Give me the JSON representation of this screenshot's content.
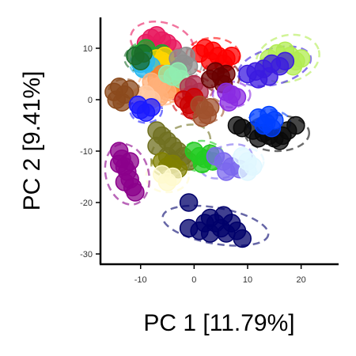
{
  "chart_data": {
    "type": "scatter",
    "title": "",
    "xlabel": "PC 1 [11.79%]",
    "ylabel": "PC 2 [9.41%]",
    "xlim": [
      -17.5,
      27
    ],
    "ylim": [
      -32,
      16
    ],
    "x_ticks": [
      -10,
      0,
      10,
      20
    ],
    "y_ticks": [
      -30,
      -20,
      -10,
      0,
      10
    ],
    "x_tick_labels": [
      "-10",
      "0",
      "10",
      "20"
    ],
    "y_tick_labels": [
      "-30",
      "-20",
      "-10",
      "0",
      "10"
    ],
    "grid": false,
    "legend": "none",
    "point_alpha": 0.75,
    "groups": [
      {
        "color": "#b2ec52",
        "ellipse": [
          17.5,
          8,
          6,
          4.5,
          15
        ],
        "points": [
          [
            14,
            8
          ],
          [
            15.5,
            9
          ],
          [
            17,
            9.5
          ],
          [
            18,
            8.5
          ],
          [
            19,
            7.5
          ],
          [
            20,
            8
          ],
          [
            16,
            7
          ],
          [
            18.5,
            6.5
          ],
          [
            13.5,
            6.5
          ]
        ]
      },
      {
        "color": "#3b1be0",
        "ellipse": [
          15,
          6.5,
          7,
          3.5,
          15
        ],
        "points": [
          [
            10,
            5
          ],
          [
            11.5,
            5.5
          ],
          [
            13,
            6
          ],
          [
            14.5,
            7
          ],
          [
            16,
            6.5
          ],
          [
            12,
            4
          ],
          [
            14,
            4.5
          ],
          [
            17,
            7.5
          ]
        ]
      },
      {
        "color": "#0a0a0a",
        "ellipse": [
          15.5,
          -6.5,
          6,
          3.5,
          0
        ],
        "points": [
          [
            8,
            -5
          ],
          [
            9,
            -5.5
          ],
          [
            11,
            -6
          ],
          [
            13,
            -6.5
          ],
          [
            14,
            -7
          ],
          [
            15,
            -7.5
          ],
          [
            16.5,
            -7
          ],
          [
            17.5,
            -6
          ],
          [
            19,
            -5
          ],
          [
            16,
            -8
          ],
          [
            12,
            -7.5
          ]
        ]
      },
      {
        "color": "#0040ff",
        "ellipse": [
          14,
          -4.5,
          4,
          2.5,
          0
        ],
        "points": [
          [
            12,
            -3.5
          ],
          [
            13.5,
            -4.5
          ],
          [
            15,
            -4
          ],
          [
            14.5,
            -5.5
          ],
          [
            13,
            -5
          ],
          [
            14,
            -3
          ]
        ]
      },
      {
        "color": "#e8195f",
        "ellipse": [
          -6,
          11,
          6,
          4,
          -15
        ],
        "points": [
          [
            -8,
            12
          ],
          [
            -7,
            12.5
          ],
          [
            -6,
            11.5
          ],
          [
            -5,
            11
          ],
          [
            -4,
            10
          ],
          [
            -7.5,
            10
          ],
          [
            -9,
            11
          ]
        ]
      },
      {
        "color": "#ff0000",
        "ellipse": [
          3.5,
          8.5,
          5,
          3.5,
          0
        ],
        "points": [
          [
            1,
            9
          ],
          [
            2,
            10
          ],
          [
            3.5,
            9.5
          ],
          [
            4.5,
            8.5
          ],
          [
            6,
            8
          ],
          [
            7,
            8.5
          ],
          [
            3,
            7.5
          ],
          [
            5.5,
            7
          ]
        ]
      },
      {
        "color": "#1aaa2a",
        "ellipse": [
          -8,
          8.5,
          4.5,
          3,
          0
        ],
        "points": [
          [
            -10,
            9
          ],
          [
            -9,
            10
          ],
          [
            -8,
            8.5
          ],
          [
            -7,
            8
          ],
          [
            -6,
            9
          ],
          [
            -9,
            7.5
          ]
        ]
      },
      {
        "color": "#ffd400",
        "ellipse": [
          -6,
          7.5,
          3.5,
          2.5,
          0
        ],
        "points": [
          [
            -7,
            8
          ],
          [
            -6,
            7.5
          ],
          [
            -5,
            7
          ],
          [
            -6.5,
            6.5
          ],
          [
            -5.5,
            8.5
          ]
        ]
      },
      {
        "color": "#28b8f0",
        "ellipse": [
          -9,
          7,
          3,
          2.5,
          0
        ],
        "points": [
          [
            -10,
            7
          ],
          [
            -9,
            7.5
          ],
          [
            -8,
            6.5
          ],
          [
            -9.5,
            6
          ]
        ]
      },
      {
        "color": "#1a6b2a",
        "ellipse": [
          -10,
          8,
          3,
          2.5,
          0
        ],
        "points": [
          [
            -11,
            8.5
          ],
          [
            -10,
            7.5
          ],
          [
            -9.5,
            9
          ]
        ]
      },
      {
        "color": "#ff7f27",
        "ellipse": [
          -5,
          3,
          4.5,
          3.5,
          0
        ],
        "points": [
          [
            -7,
            4
          ],
          [
            -6,
            5
          ],
          [
            -5,
            3.5
          ],
          [
            -4,
            4
          ],
          [
            -3,
            3
          ],
          [
            -6,
            2.5
          ],
          [
            -4.5,
            2
          ]
        ]
      },
      {
        "color": "#ffb07a",
        "ellipse": [
          -6,
          2.5,
          4.5,
          3.5,
          0
        ],
        "points": [
          [
            -8,
            3.5
          ],
          [
            -7,
            2.5
          ],
          [
            -6,
            3
          ],
          [
            -5,
            1.5
          ],
          [
            -7.5,
            1
          ],
          [
            -6.5,
            0.5
          ]
        ]
      },
      {
        "color": "#ffc8a0",
        "ellipse": [
          -9,
          0,
          3.5,
          2.5,
          0
        ],
        "points": [
          [
            -10,
            0.5
          ],
          [
            -9,
            1
          ],
          [
            -8,
            0
          ],
          [
            -9.5,
            -1
          ]
        ]
      },
      {
        "color": "#8b4a1c",
        "ellipse": [
          -13,
          1.5,
          3,
          2.5,
          0
        ],
        "points": [
          [
            -15,
            1.5
          ],
          [
            -14,
            2.5
          ],
          [
            -13,
            1
          ],
          [
            -12,
            2
          ],
          [
            -14.5,
            0
          ],
          [
            -13.5,
            -0.5
          ]
        ]
      },
      {
        "color": "#8f8f8f",
        "ellipse": [
          -2,
          7,
          3.5,
          3,
          0
        ],
        "points": [
          [
            -3,
            8
          ],
          [
            -2,
            7
          ],
          [
            -1,
            6.5
          ],
          [
            -3,
            6
          ],
          [
            -1.5,
            8.5
          ]
        ]
      },
      {
        "color": "#90eeb0",
        "ellipse": [
          -3.5,
          4.5,
          3,
          2.5,
          0
        ],
        "points": [
          [
            -5,
            5
          ],
          [
            -4,
            4.5
          ],
          [
            -3,
            5.5
          ],
          [
            -2.5,
            4
          ]
        ]
      },
      {
        "color": "#b03050",
        "ellipse": [
          0,
          2,
          3.5,
          2.5,
          0
        ],
        "points": [
          [
            -1,
            2.5
          ],
          [
            0,
            3
          ],
          [
            1,
            1.5
          ],
          [
            -0.5,
            1
          ]
        ]
      },
      {
        "color": "#6b0000",
        "ellipse": [
          5,
          4.5,
          3.5,
          3,
          0
        ],
        "points": [
          [
            4,
            5.5
          ],
          [
            5,
            4.5
          ],
          [
            6,
            5
          ],
          [
            3,
            4
          ],
          [
            5.5,
            3
          ]
        ]
      },
      {
        "color": "#cc0000",
        "ellipse": [
          -1,
          -0.5,
          3,
          2.5,
          0
        ],
        "points": [
          [
            -2,
            0
          ],
          [
            -1,
            -1
          ],
          [
            0,
            0.5
          ],
          [
            -0.5,
            -2
          ]
        ]
      },
      {
        "color": "#a0522d",
        "ellipse": [
          2,
          -2,
          3.5,
          2.5,
          0
        ],
        "points": [
          [
            1,
            -1
          ],
          [
            2,
            -2
          ],
          [
            3,
            -1.5
          ],
          [
            2.5,
            -3
          ],
          [
            1.5,
            -3.5
          ]
        ]
      },
      {
        "color": "#1a1aff",
        "ellipse": [
          -9,
          -2,
          3,
          2.5,
          0
        ],
        "points": [
          [
            -10,
            -2
          ],
          [
            -9,
            -2.5
          ],
          [
            -8,
            -1.5
          ],
          [
            -10.5,
            -1
          ]
        ]
      },
      {
        "color": "#8a2be2",
        "ellipse": [
          7,
          1,
          3.5,
          2.5,
          0
        ],
        "points": [
          [
            6,
            1.5
          ],
          [
            7,
            1
          ],
          [
            8,
            0.5
          ],
          [
            6.5,
            -0.5
          ]
        ]
      },
      {
        "color": "#707020",
        "ellipse": [
          -2.5,
          -9.5,
          6,
          4,
          30
        ],
        "points": [
          [
            -7,
            -6
          ],
          [
            -6,
            -7
          ],
          [
            -5,
            -8
          ],
          [
            -4,
            -9
          ],
          [
            -3,
            -10
          ],
          [
            -2,
            -11
          ],
          [
            -1,
            -12
          ],
          [
            -5,
            -11
          ],
          [
            -7,
            -9
          ],
          [
            -4,
            -12
          ]
        ]
      },
      {
        "color": "#808000",
        "ellipse": [
          -4.5,
          -12.5,
          3.5,
          2.5,
          0
        ],
        "points": [
          [
            -6,
            -12
          ],
          [
            -5,
            -13
          ],
          [
            -4,
            -12.5
          ],
          [
            -3,
            -13.5
          ]
        ]
      },
      {
        "color": "#fffacd",
        "ellipse": [
          -5,
          -15,
          4,
          3,
          0
        ],
        "points": [
          [
            -6,
            -14.5
          ],
          [
            -5,
            -16
          ],
          [
            -4,
            -15
          ]
        ]
      },
      {
        "color": "#22cc22",
        "ellipse": [
          1.5,
          -11,
          4,
          3,
          0
        ],
        "points": [
          [
            0,
            -10
          ],
          [
            1,
            -11
          ],
          [
            2,
            -11.5
          ],
          [
            3,
            -10.5
          ],
          [
            1.5,
            -12.5
          ],
          [
            3.5,
            -12
          ]
        ]
      },
      {
        "color": "#7b68ee",
        "ellipse": [
          6,
          -12,
          5,
          3,
          20
        ],
        "points": [
          [
            4,
            -11
          ],
          [
            5.5,
            -12
          ],
          [
            7,
            -13
          ],
          [
            8.5,
            -13.5
          ],
          [
            6,
            -14
          ]
        ]
      },
      {
        "color": "#e0f7ff",
        "ellipse": [
          10,
          -12,
          3,
          2.5,
          0
        ],
        "points": [
          [
            9,
            -11
          ],
          [
            10,
            -12
          ],
          [
            11,
            -13
          ],
          [
            10,
            -14
          ]
        ]
      },
      {
        "color": "#8b008b",
        "ellipse": [
          -12.5,
          -14.5,
          4,
          6,
          15
        ],
        "points": [
          [
            -14,
            -10
          ],
          [
            -13.5,
            -11.5
          ],
          [
            -13,
            -13
          ],
          [
            -12.5,
            -14
          ],
          [
            -12,
            -15.5
          ],
          [
            -11.5,
            -17
          ],
          [
            -11,
            -18
          ],
          [
            -13,
            -16
          ],
          [
            -14,
            -12.5
          ],
          [
            -12,
            -12
          ]
        ]
      },
      {
        "color": "#00006b",
        "ellipse": [
          4,
          -24.5,
          10,
          3.5,
          -10
        ],
        "points": [
          [
            -1,
            -20
          ],
          [
            -1,
            -25
          ],
          [
            1,
            -25.5
          ],
          [
            2,
            -24
          ],
          [
            3,
            -23
          ],
          [
            4,
            -24
          ],
          [
            5,
            -25
          ],
          [
            6,
            -26
          ],
          [
            7,
            -24
          ],
          [
            8,
            -25.5
          ],
          [
            9,
            -27
          ],
          [
            3,
            -26
          ],
          [
            5.5,
            -22.5
          ]
        ]
      }
    ]
  }
}
